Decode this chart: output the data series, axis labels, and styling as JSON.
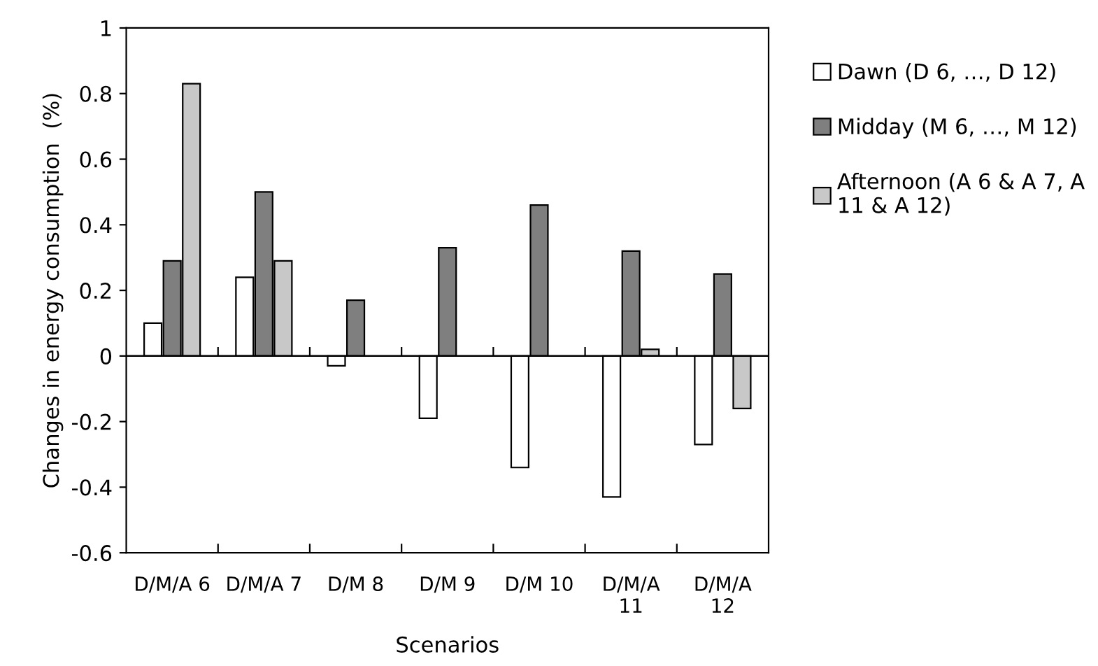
{
  "chart_data": {
    "type": "bar",
    "xlabel": "Scenarios",
    "ylabel": "Changes in energy consumption  (%)",
    "categories": [
      "D/M/A 6",
      "D/M/A 7",
      "D/M 8",
      "D/M 9",
      "D/M 10",
      "D/M/A 11",
      "D/M/A 12"
    ],
    "series": [
      {
        "name": "Dawn (D 6, …, D 12)",
        "color": "#ffffff",
        "values": [
          0.1,
          0.24,
          -0.03,
          -0.19,
          -0.34,
          -0.43,
          -0.27
        ]
      },
      {
        "name": "Midday (M 6, …, M 12)",
        "color": "#7f7f7f",
        "values": [
          0.29,
          0.5,
          0.17,
          0.33,
          0.46,
          0.32,
          0.25
        ]
      },
      {
        "name": "Afternoon (A 6 & A 7, A 11 & A 12)",
        "color": "#c8c8c8",
        "values": [
          0.83,
          0.29,
          null,
          null,
          null,
          0.02,
          -0.16
        ]
      }
    ],
    "ylim": [
      -0.6,
      1
    ],
    "yticks": [
      -0.6,
      -0.4,
      -0.2,
      0,
      0.2,
      0.4,
      0.6,
      0.8,
      1
    ],
    "ref_lines": [
      {
        "axis": "y",
        "value": 0,
        "color": "#000000"
      }
    ],
    "grid": false,
    "legend": "right"
  }
}
